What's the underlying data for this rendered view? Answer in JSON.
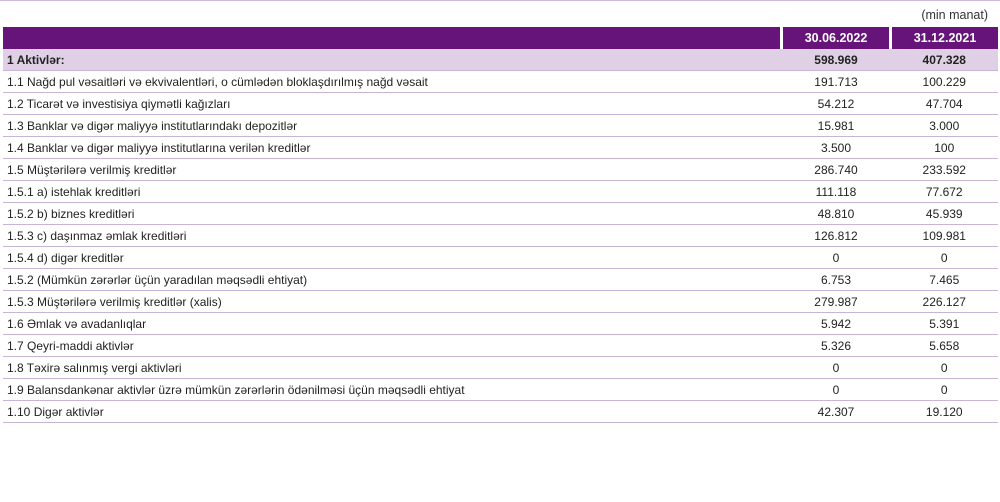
{
  "unit": "(min manat)",
  "columns": [
    "30.06.2022",
    "31.12.2021"
  ],
  "total": {
    "label": "1 Aktivlər:",
    "values": [
      "598.969",
      "407.328"
    ]
  },
  "rows": [
    {
      "label": "1.1 Nağd pul vəsaitləri və ekvivalentləri, o cümlədən bloklaşdırılmış nağd vəsait",
      "values": [
        "191.713",
        "100.229"
      ]
    },
    {
      "label": "1.2 Ticarət və investisiya qiymətli kağızları",
      "values": [
        "54.212",
        "47.704"
      ]
    },
    {
      "label": "1.3 Banklar və digər maliyyə institutlarındakı depozitlər",
      "values": [
        "15.981",
        "3.000"
      ]
    },
    {
      "label": "1.4 Banklar və digər maliyyə institutlarına verilən kreditlər",
      "values": [
        "3.500",
        "100"
      ]
    },
    {
      "label": "1.5 Müştərilərə verilmiş kreditlər",
      "values": [
        "286.740",
        "233.592"
      ]
    },
    {
      "label": "1.5.1 a) istehlak kreditləri",
      "values": [
        "111.118",
        "77.672"
      ]
    },
    {
      "label": "1.5.2 b) biznes kreditləri",
      "values": [
        "48.810",
        "45.939"
      ]
    },
    {
      "label": "1.5.3 c) daşınmaz əmlak kreditləri",
      "values": [
        "126.812",
        "109.981"
      ]
    },
    {
      "label": "1.5.4 d) digər kreditlər",
      "values": [
        "0",
        "0"
      ]
    },
    {
      "label": "1.5.2 (Mümkün zərərlər üçün yaradılan məqsədli ehtiyat)",
      "values": [
        "6.753",
        "7.465"
      ]
    },
    {
      "label": "1.5.3 Müştərilərə verilmiş kreditlər (xalis)",
      "values": [
        "279.987",
        "226.127"
      ]
    },
    {
      "label": "1.6 Əmlak və avadanlıqlar",
      "values": [
        "5.942",
        "5.391"
      ]
    },
    {
      "label": "1.7 Qeyri-maddi aktivlər",
      "values": [
        "5.326",
        "5.658"
      ]
    },
    {
      "label": "1.8 Təxirə salınmış vergi aktivləri",
      "values": [
        "0",
        "0"
      ]
    },
    {
      "label": "1.9 Balansdankənar aktivlər üzrə mümkün zərərlərin ödənilməsi üçün məqsədli ehtiyat",
      "values": [
        "0",
        "0"
      ]
    },
    {
      "label": "1.10 Digər aktivlər",
      "values": [
        "42.307",
        "19.120"
      ]
    }
  ],
  "colors": {
    "header": "#661479",
    "total_row": "#dfd0e6",
    "divider": "#c9b3d6"
  }
}
